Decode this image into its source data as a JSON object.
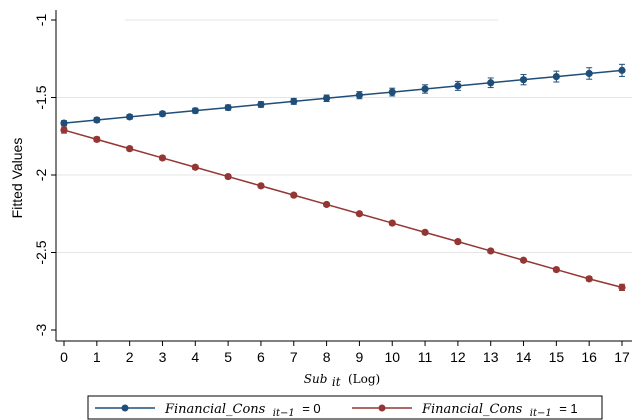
{
  "chart_data": {
    "type": "line",
    "ylabel": "Fitted Values",
    "xlabel": {
      "main": "Sub",
      "sub": "it",
      "suffix": "(Log)"
    },
    "x": [
      0,
      1,
      2,
      3,
      4,
      5,
      6,
      7,
      8,
      9,
      10,
      11,
      12,
      13,
      14,
      15,
      16,
      17
    ],
    "x_tick_labels": [
      "0",
      "1",
      "2",
      "3",
      "4",
      "5",
      "6",
      "7",
      "8",
      "9",
      "10",
      "11",
      "12",
      "13",
      "14",
      "15",
      "16",
      "17"
    ],
    "y_ticks": [
      -1,
      -1.5,
      -2,
      -2.5,
      -3
    ],
    "y_tick_labels": [
      "-1",
      "-1.5",
      "-2",
      "-2.5",
      "-3"
    ],
    "xlim": [
      -0.15,
      17.15
    ],
    "ylim": [
      -3.0,
      -1.0
    ],
    "grid": "horizontal",
    "legend_position": "bottom",
    "series": [
      {
        "color": "#1f4e79",
        "legend": {
          "name": "Financial_Cons",
          "sub": "it−1",
          "eq": "= 0"
        },
        "values": [
          -1.665,
          -1.645,
          -1.625,
          -1.605,
          -1.585,
          -1.565,
          -1.545,
          -1.525,
          -1.505,
          -1.485,
          -1.465,
          -1.445,
          -1.425,
          -1.405,
          -1.385,
          -1.365,
          -1.345,
          -1.325
        ],
        "errors": [
          0.015,
          0.015,
          0.015,
          0.015,
          0.016,
          0.017,
          0.018,
          0.019,
          0.021,
          0.023,
          0.025,
          0.027,
          0.029,
          0.031,
          0.033,
          0.035,
          0.037,
          0.039
        ]
      },
      {
        "color": "#943634",
        "legend": {
          "name": "Financial_Cons",
          "sub": "it−1",
          "eq": "= 1"
        },
        "values": [
          -1.71,
          -1.77,
          -1.83,
          -1.89,
          -1.95,
          -2.01,
          -2.07,
          -2.13,
          -2.19,
          -2.25,
          -2.31,
          -2.37,
          -2.43,
          -2.49,
          -2.55,
          -2.61,
          -2.67,
          -2.725
        ],
        "errors": [
          0.02,
          0.015,
          0.014,
          0.013,
          0.013,
          0.013,
          0.012,
          0.012,
          0.012,
          0.012,
          0.012,
          0.012,
          0.012,
          0.012,
          0.012,
          0.013,
          0.014,
          0.02
        ]
      }
    ]
  }
}
